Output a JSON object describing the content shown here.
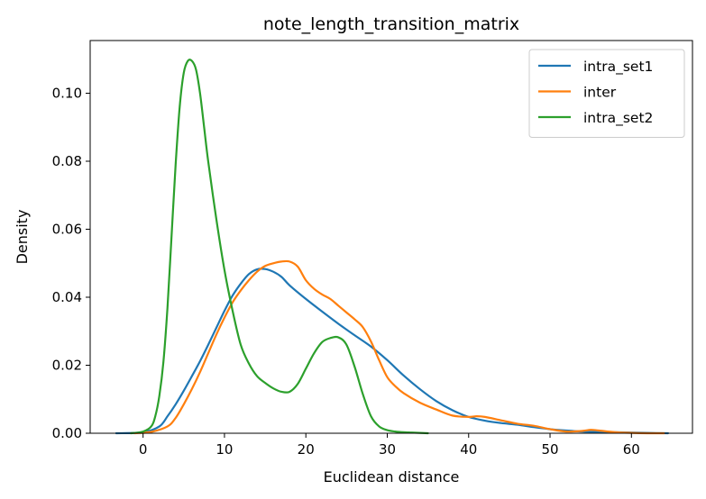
{
  "chart_data": {
    "type": "line",
    "title": "note_length_transition_matrix",
    "xlabel": "Euclidean distance",
    "ylabel": "Density",
    "xlim": [
      -6.5,
      67.5
    ],
    "ylim": [
      0,
      0.1155
    ],
    "x_ticks": [
      0,
      10,
      20,
      30,
      40,
      50,
      60
    ],
    "x_tick_labels": [
      "0",
      "10",
      "20",
      "30",
      "40",
      "50",
      "60"
    ],
    "y_ticks": [
      0,
      0.02,
      0.04,
      0.06,
      0.08,
      0.1
    ],
    "y_tick_labels": [
      "0.00",
      "0.02",
      "0.04",
      "0.06",
      "0.08",
      "0.10"
    ],
    "grid": false,
    "legend_position": "top-right",
    "series": [
      {
        "name": "intra_set1",
        "color": "#1f77b4",
        "x": [
          -3.3,
          0,
          2,
          3,
          4,
          5,
          6,
          7,
          8,
          9,
          10,
          11,
          12,
          13,
          14,
          15,
          16,
          17,
          18,
          20,
          22,
          24,
          26,
          28,
          30,
          32,
          34,
          36,
          38,
          40,
          42,
          44,
          46,
          48,
          50,
          52,
          54,
          56,
          58,
          60,
          62,
          64.5
        ],
        "values": [
          0.0,
          0.0003,
          0.002,
          0.005,
          0.0085,
          0.0125,
          0.0168,
          0.0212,
          0.026,
          0.031,
          0.036,
          0.0405,
          0.044,
          0.0468,
          0.0482,
          0.0483,
          0.0475,
          0.046,
          0.0435,
          0.0395,
          0.0358,
          0.0322,
          0.0288,
          0.0255,
          0.0215,
          0.017,
          0.013,
          0.0095,
          0.0068,
          0.0048,
          0.0037,
          0.003,
          0.0025,
          0.0018,
          0.0012,
          0.0008,
          0.0005,
          0.0004,
          0.0003,
          0.0002,
          0.0001,
          0.0
        ]
      },
      {
        "name": "inter",
        "color": "#ff7f0e",
        "x": [
          -1,
          1,
          3,
          4,
          5,
          6,
          7,
          8,
          9,
          10,
          11,
          12,
          13,
          14,
          15,
          16,
          17,
          18,
          19,
          20,
          21,
          22,
          23,
          24,
          25,
          26,
          27,
          28,
          29,
          30,
          31,
          32,
          34,
          36,
          38,
          40,
          41,
          42,
          44,
          46,
          48,
          50,
          52,
          54,
          55,
          56,
          58,
          60,
          62,
          64
        ],
        "values": [
          0.0,
          0.0004,
          0.002,
          0.0045,
          0.0085,
          0.013,
          0.018,
          0.0235,
          0.029,
          0.034,
          0.0385,
          0.042,
          0.045,
          0.0475,
          0.0492,
          0.05,
          0.0505,
          0.0505,
          0.049,
          0.045,
          0.0425,
          0.0408,
          0.0395,
          0.0375,
          0.0355,
          0.0335,
          0.0312,
          0.027,
          0.0215,
          0.0165,
          0.0138,
          0.0118,
          0.009,
          0.007,
          0.0052,
          0.0048,
          0.005,
          0.0048,
          0.0038,
          0.0028,
          0.0022,
          0.0012,
          0.0005,
          0.0007,
          0.001,
          0.0008,
          0.0003,
          0.0001,
          0.0,
          0.0
        ]
      },
      {
        "name": "intra_set2",
        "color": "#2ca02c",
        "x": [
          -1.5,
          0,
          1,
          1.5,
          2,
          2.5,
          3,
          3.5,
          4,
          4.5,
          5,
          5.5,
          6,
          6.5,
          7,
          7.5,
          8,
          9,
          10,
          11,
          12,
          13,
          14,
          15,
          16,
          17,
          18,
          19,
          20,
          21,
          22,
          23,
          24,
          25,
          26,
          27,
          28,
          29,
          30,
          31,
          32,
          33,
          34,
          35
        ],
        "values": [
          0.0,
          0.0005,
          0.002,
          0.005,
          0.011,
          0.021,
          0.037,
          0.058,
          0.079,
          0.096,
          0.106,
          0.1095,
          0.1095,
          0.107,
          0.1,
          0.09,
          0.08,
          0.063,
          0.048,
          0.036,
          0.026,
          0.0205,
          0.0168,
          0.0148,
          0.0132,
          0.0122,
          0.0122,
          0.0145,
          0.019,
          0.0235,
          0.0268,
          0.028,
          0.0282,
          0.026,
          0.0195,
          0.0115,
          0.005,
          0.002,
          0.0009,
          0.0005,
          0.0003,
          0.0002,
          0.0001,
          0.0
        ]
      }
    ]
  }
}
